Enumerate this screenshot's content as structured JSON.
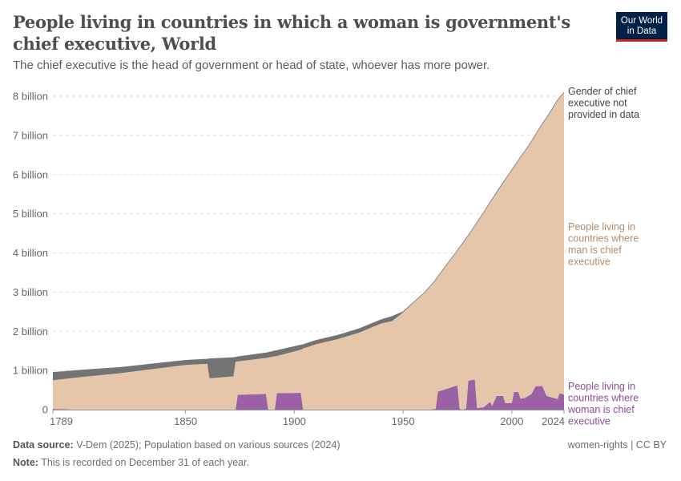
{
  "title": "People living in countries in which a woman is government's chief executive, World",
  "subtitle": "The chief executive is the head of government or head of state, whoever has more power.",
  "logo": {
    "line1": "Our World",
    "line2": "in Data"
  },
  "footer": {
    "source_label": "Data source:",
    "source": "V-Dem (2025); Population based on various sources (2024)",
    "note_label": "Note:",
    "note": "This is recorded on December 31 of each year.",
    "license": "women-rights | CC BY"
  },
  "chart_data": {
    "type": "area",
    "stacked": true,
    "x_ticks": [
      "1789",
      "1850",
      "1900",
      "1950",
      "2000",
      "2024"
    ],
    "y_ticks": [
      "0",
      "1 billion",
      "2 billion",
      "3 billion",
      "4 billion",
      "5 billion",
      "6 billion",
      "7 billion",
      "8 billion"
    ],
    "xlim": [
      1789,
      2024
    ],
    "ylim": [
      0,
      8000000000
    ],
    "grid": "horizontal dashed",
    "legend": "right (inline labels)",
    "x": [
      1789,
      1800,
      1820,
      1850,
      1860,
      1861,
      1872,
      1873,
      1874,
      1887,
      1888,
      1891,
      1892,
      1903,
      1904,
      1910,
      1920,
      1930,
      1940,
      1945,
      1950,
      1960,
      1964,
      1965,
      1966,
      1975,
      1976,
      1977,
      1979,
      1980,
      1983,
      1984,
      1987,
      1990,
      1991,
      1993,
      1996,
      1997,
      2000,
      2001,
      2003,
      2004,
      2006,
      2009,
      2011,
      2014,
      2016,
      2021,
      2022,
      2024
    ],
    "series": [
      {
        "name": "People living in countries where woman is chief executive",
        "color": "#9a62a5",
        "values_billion": [
          0.02,
          0,
          0,
          0,
          0,
          0,
          0,
          0,
          0.38,
          0.4,
          0,
          0,
          0.42,
          0.43,
          0,
          0,
          0,
          0,
          0,
          0,
          0,
          0,
          0.01,
          0.02,
          0.46,
          0.62,
          0.02,
          0,
          0.02,
          0.74,
          0.77,
          0.04,
          0.06,
          0.2,
          0.1,
          0.35,
          0.35,
          0.17,
          0.17,
          0.45,
          0.45,
          0.28,
          0.3,
          0.4,
          0.6,
          0.6,
          0.35,
          0.27,
          0.42,
          0.38
        ]
      },
      {
        "name": "People living in countries where man is chief executive",
        "color": "#e6c6ab",
        "label_color": "#b38b6d",
        "values_billion": [
          0.73,
          0.82,
          0.93,
          1.14,
          1.17,
          0.8,
          0.85,
          1.22,
          0.85,
          0.92,
          1.33,
          1.36,
          0.95,
          1.1,
          1.56,
          1.67,
          1.8,
          1.97,
          2.2,
          2.26,
          2.48,
          3.0,
          3.24,
          3.3,
          2.94,
          3.45,
          4.13,
          4.22,
          4.36,
          3.71,
          3.93,
          4.74,
          4.97,
          5.1,
          5.28,
          5.2,
          5.45,
          5.71,
          5.95,
          5.75,
          5.91,
          6.17,
          6.3,
          6.45,
          6.43,
          6.7,
          7.1,
          7.63,
          7.55,
          7.72
        ]
      },
      {
        "name": "Gender of chief executive not provided in data",
        "color": "#737373",
        "label_color": "#444444",
        "values_billion": [
          0.2,
          0.18,
          0.15,
          0.12,
          0.12,
          0.5,
          0.48,
          0.12,
          0.12,
          0.13,
          0.13,
          0.14,
          0.14,
          0.12,
          0.1,
          0.1,
          0.1,
          0.1,
          0.1,
          0.12,
          0.02,
          0,
          0,
          0,
          0,
          0,
          0,
          0,
          0,
          0,
          0,
          0,
          0,
          0,
          0,
          0,
          0,
          0,
          0,
          0,
          0,
          0,
          0,
          0,
          0,
          0,
          0,
          0,
          0,
          0
        ]
      }
    ],
    "labels": [
      [
        "Gender of chief",
        "executive not",
        "provided in data"
      ],
      [
        "People living in",
        "countries where",
        "man is chief",
        "executive"
      ],
      [
        "People living in",
        "countries where",
        "woman is chief",
        "executive"
      ]
    ]
  }
}
